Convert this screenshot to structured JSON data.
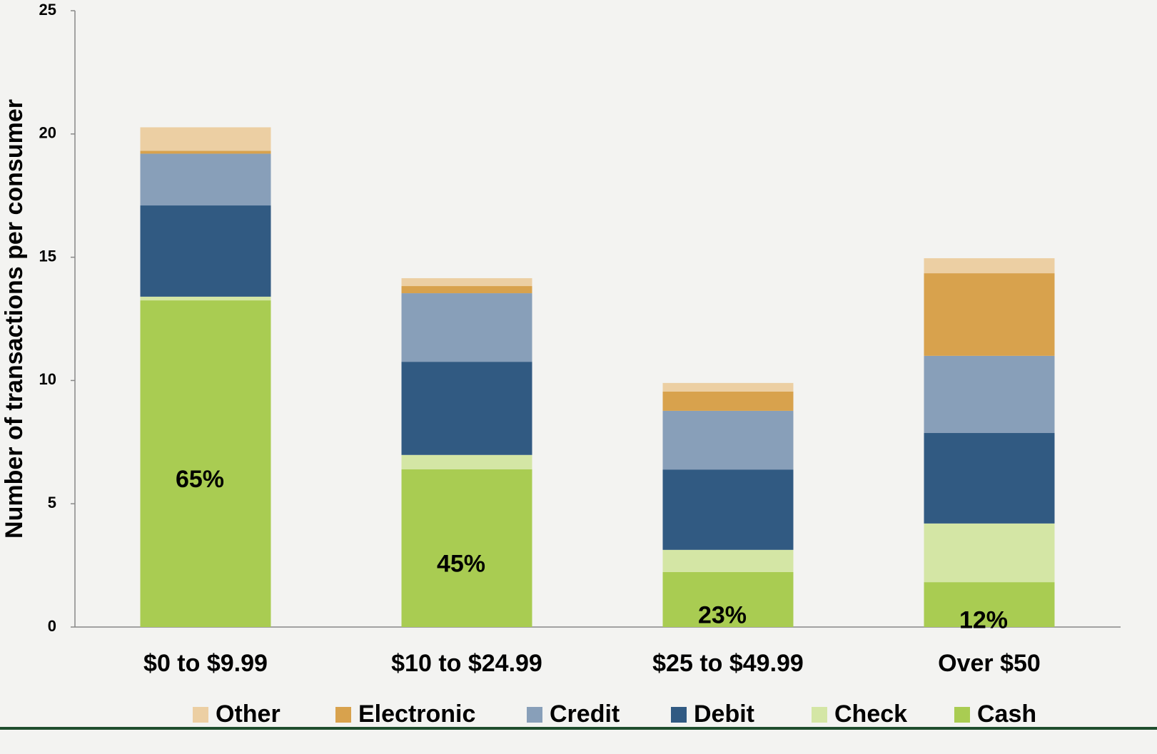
{
  "chart_data": {
    "type": "stacked_bar",
    "y_label": "Number of transactions per consumer",
    "categories": [
      "$0 to $9.99",
      "$10 to $24.99",
      "$25 to $49.99",
      "Over $50"
    ],
    "series": [
      {
        "name": "Cash",
        "color": "#a9cc52",
        "values": [
          13.25,
          6.4,
          2.23,
          1.82
        ]
      },
      {
        "name": "Check",
        "color": "#d4e6a5",
        "values": [
          0.15,
          0.58,
          0.9,
          2.38
        ]
      },
      {
        "name": "Debit",
        "color": "#315a82",
        "values": [
          3.7,
          3.78,
          3.26,
          3.67
        ]
      },
      {
        "name": "Credit",
        "color": "#889fb9",
        "values": [
          2.1,
          2.78,
          2.38,
          3.13
        ]
      },
      {
        "name": "Electronic",
        "color": "#d8a24d",
        "values": [
          0.12,
          0.29,
          0.78,
          3.35
        ]
      },
      {
        "name": "Other",
        "color": "#eccfa3",
        "values": [
          0.95,
          0.32,
          0.35,
          0.61
        ]
      }
    ],
    "annotations": [
      "65%",
      "45%",
      "23%",
      "12%"
    ],
    "ylim": [
      0,
      25
    ],
    "yticks": [
      0,
      5,
      10,
      15,
      20,
      25
    ],
    "grid": false,
    "legend": "bottom"
  }
}
